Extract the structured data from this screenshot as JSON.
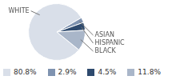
{
  "chart_data": {
    "type": "pie",
    "categories": [
      "WHITE",
      "ASIAN",
      "HISPANIC",
      "BLACK"
    ],
    "values": [
      80.8,
      2.9,
      4.5,
      11.8
    ],
    "value_labels": [
      "80.8%",
      "2.9%",
      "4.5%",
      "11.8%"
    ],
    "colors": [
      "#d9dfe9",
      "#7f93b0",
      "#2e4a6e",
      "#a9b6c9"
    ],
    "legend": "bottom"
  }
}
